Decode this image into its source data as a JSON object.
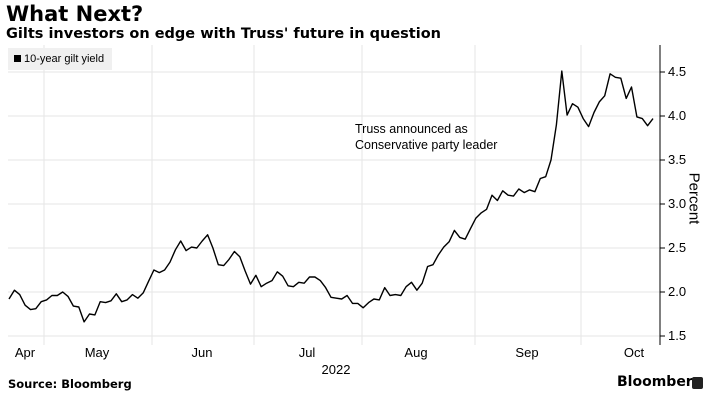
{
  "header": {
    "title": "What Next?",
    "subtitle": "Gilts investors on edge with Truss' future in question"
  },
  "footer": {
    "source": "Source: Bloomberg",
    "logo": "Bloomberg"
  },
  "chart_data": {
    "type": "line",
    "title": "What Next?",
    "subtitle": "Gilts investors on edge with Truss' future in question",
    "xlabel": "2022",
    "ylabel": "Percent",
    "x_tick_labels": [
      "Apr",
      "May",
      "Jun",
      "Jul",
      "Aug",
      "Sep",
      "Oct"
    ],
    "y_ticks": [
      1.5,
      2.0,
      2.5,
      3.0,
      3.5,
      4.0,
      4.5
    ],
    "y_tick_labels": [
      "1.5",
      "2.0",
      "2.5",
      "3.0",
      "3.5",
      "4.0",
      "4.5"
    ],
    "ylim": [
      1.45,
      4.78
    ],
    "grid": true,
    "legend": {
      "position": "top-left",
      "entries": [
        "10-year gilt yield"
      ]
    },
    "annotation": [
      "Truss announced as",
      "Conservative party leader"
    ],
    "series": [
      {
        "name": "10-year gilt yield",
        "color": "#000000",
        "values": [
          1.92,
          2.02,
          1.97,
          1.85,
          1.8,
          1.81,
          1.89,
          1.91,
          1.96,
          1.96,
          2.0,
          1.95,
          1.84,
          1.83,
          1.66,
          1.75,
          1.74,
          1.89,
          1.88,
          1.9,
          1.98,
          1.89,
          1.91,
          1.97,
          1.93,
          1.99,
          2.12,
          2.25,
          2.22,
          2.25,
          2.34,
          2.48,
          2.58,
          2.47,
          2.51,
          2.5,
          2.58,
          2.65,
          2.5,
          2.31,
          2.3,
          2.37,
          2.46,
          2.4,
          2.24,
          2.09,
          2.19,
          2.06,
          2.1,
          2.13,
          2.23,
          2.18,
          2.07,
          2.06,
          2.11,
          2.1,
          2.17,
          2.17,
          2.13,
          2.05,
          1.94,
          1.93,
          1.92,
          1.96,
          1.87,
          1.87,
          1.82,
          1.88,
          1.92,
          1.91,
          2.05,
          1.96,
          1.97,
          1.96,
          2.06,
          2.11,
          2.02,
          2.1,
          2.29,
          2.31,
          2.42,
          2.51,
          2.57,
          2.7,
          2.62,
          2.6,
          2.72,
          2.84,
          2.9,
          2.94,
          3.1,
          3.04,
          3.15,
          3.1,
          3.09,
          3.17,
          3.13,
          3.16,
          3.14,
          3.29,
          3.31,
          3.5,
          3.9,
          4.51,
          4.01,
          4.14,
          4.1,
          3.97,
          3.88,
          4.04,
          4.16,
          4.23,
          4.48,
          4.44,
          4.43,
          4.2,
          4.33,
          3.99,
          3.97,
          3.89,
          3.97
        ]
      }
    ]
  }
}
